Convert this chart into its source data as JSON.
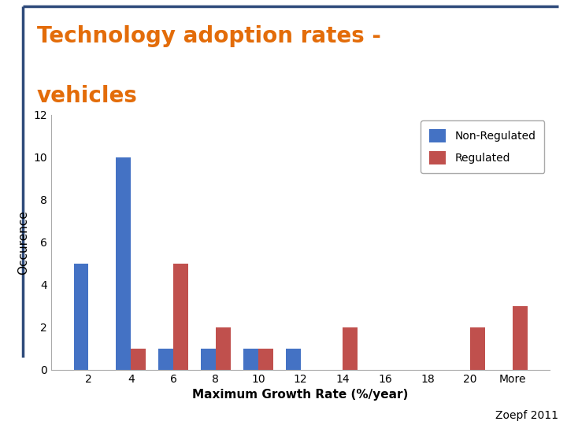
{
  "categories": [
    "2",
    "4",
    "6",
    "8",
    "10",
    "12",
    "14",
    "16",
    "18",
    "20",
    "More"
  ],
  "non_regulated": [
    5,
    10,
    1,
    1,
    1,
    1,
    0,
    0,
    0,
    0,
    0
  ],
  "regulated": [
    0,
    1,
    5,
    2,
    1,
    0,
    2,
    0,
    0,
    2,
    3
  ],
  "non_regulated_color": "#4472C4",
  "regulated_color": "#C0504D",
  "ylabel": "Occurence",
  "xlabel": "Maximum Growth Rate (%/year)",
  "ylim": [
    0,
    12
  ],
  "yticks": [
    0,
    2,
    4,
    6,
    8,
    10,
    12
  ],
  "legend_labels": [
    "Non-Regulated",
    "Regulated"
  ],
  "title_line1": "Technology adoption rates -",
  "title_line2": "vehicles",
  "title_color": "#E36C09",
  "citation": "Zoepf 2011",
  "bar_width": 0.35,
  "background_color": "#FFFFFF",
  "slide_border_color": "#2E4A7A"
}
